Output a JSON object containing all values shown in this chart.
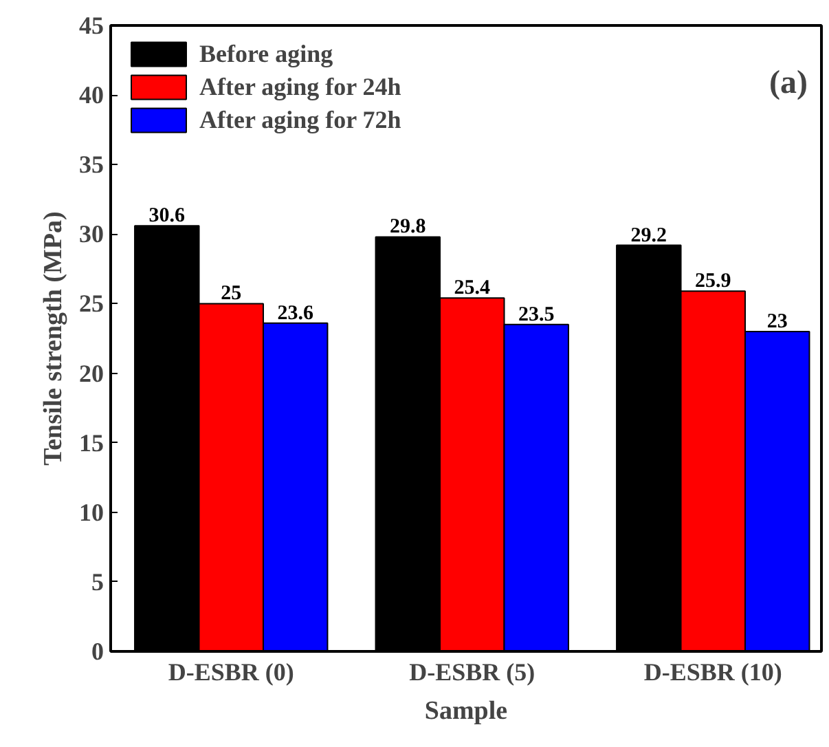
{
  "chart_data": {
    "type": "bar",
    "xlabel": "Sample",
    "ylabel": "Tensile strength (MPa)",
    "categories": [
      "D-ESBR (0)",
      "D-ESBR (5)",
      "D-ESBR (10)"
    ],
    "series": [
      {
        "name": "Before aging",
        "color": "#000000",
        "values": [
          30.6,
          29.8,
          29.2
        ]
      },
      {
        "name": "After aging for 24h",
        "color": "#ff0000",
        "values": [
          25,
          25.4,
          25.9
        ]
      },
      {
        "name": "After aging for 72h",
        "color": "#0000ff",
        "values": [
          23.6,
          23.5,
          23
        ]
      }
    ],
    "ylim": [
      0,
      45
    ],
    "yticks": [
      0,
      5,
      10,
      15,
      20,
      25,
      30,
      35,
      40,
      45
    ],
    "data_labels": true,
    "legend": "top left",
    "grid": false,
    "annotations": [
      "(a)"
    ]
  }
}
